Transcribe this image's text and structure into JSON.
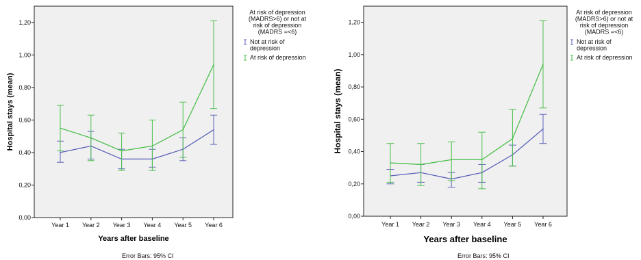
{
  "chart_data": [
    {
      "type": "line",
      "categories": [
        "Year 1",
        "Year 2",
        "Year 3",
        "Year 4",
        "Year 5",
        "Year 6"
      ],
      "xlabel": "Years after baseline",
      "ylabel": "Hospital stays (mean)",
      "ylim": [
        0,
        1.3
      ],
      "yticks": [
        "0,00",
        "0,20",
        "0,40",
        "0,60",
        "0,80",
        "1,00",
        "1,20"
      ],
      "legend": {
        "title": "At risk of depression (MADRS>6) or not at risk of depression (MADRS =<6)",
        "title_lines": [
          "At risk of depression",
          "(MADRS>6) or not at",
          "risk of depression",
          "(MADRS =<6)"
        ]
      },
      "series": [
        {
          "name": "Not at risk of depression",
          "name_lines": [
            "Not at risk of",
            "depression"
          ],
          "color": "#5b63b8",
          "values": [
            0.4,
            0.44,
            0.36,
            0.36,
            0.42,
            0.54
          ],
          "ci_low": [
            0.34,
            0.36,
            0.3,
            0.31,
            0.35,
            0.45
          ],
          "ci_high": [
            0.47,
            0.53,
            0.42,
            0.42,
            0.49,
            0.63
          ]
        },
        {
          "name": "At risk of depression",
          "name_lines": [
            "At risk of depression"
          ],
          "color": "#4cbf4c",
          "values": [
            0.55,
            0.49,
            0.41,
            0.44,
            0.54,
            0.94
          ],
          "ci_low": [
            0.41,
            0.35,
            0.29,
            0.29,
            0.37,
            0.67
          ],
          "ci_high": [
            0.69,
            0.63,
            0.52,
            0.6,
            0.71,
            1.21
          ]
        }
      ],
      "footnote": "Error Bars: 95% CI"
    },
    {
      "type": "line",
      "categories": [
        "Year 1",
        "Year 2",
        "Year 3",
        "Year 4",
        "Year 5",
        "Year 6"
      ],
      "xlabel": "Years after baseline",
      "ylabel": "Hospital stays (mean)",
      "ylim": [
        0,
        1.3
      ],
      "yticks": [
        "0,00",
        "0,20",
        "0,40",
        "0,60",
        "0,80",
        "1,00",
        "1,20"
      ],
      "legend": {
        "title": "At risk of depression (MADRS>6) or not at risk of depression (MADRS =<6)",
        "title_lines": [
          "At risk of depression",
          "(MADRS>6) or not at",
          "risk of depression",
          "(MADRS =<6)"
        ]
      },
      "series": [
        {
          "name": "Not at risk of depression",
          "name_lines": [
            "Not at risk of",
            "depression"
          ],
          "color": "#5b63b8",
          "values": [
            0.25,
            0.27,
            0.23,
            0.27,
            0.38,
            0.54
          ],
          "ci_low": [
            0.2,
            0.21,
            0.18,
            0.21,
            0.31,
            0.45
          ],
          "ci_high": [
            0.29,
            0.32,
            0.27,
            0.32,
            0.44,
            0.63
          ]
        },
        {
          "name": "At risk of depression",
          "name_lines": [
            "At risk of depression"
          ],
          "color": "#4cbf4c",
          "values": [
            0.33,
            0.32,
            0.35,
            0.35,
            0.48,
            0.94
          ],
          "ci_low": [
            0.21,
            0.19,
            0.22,
            0.17,
            0.31,
            0.67
          ],
          "ci_high": [
            0.45,
            0.45,
            0.46,
            0.52,
            0.66,
            1.21
          ]
        }
      ],
      "footnote": "Error Bars: 95% CI"
    }
  ]
}
